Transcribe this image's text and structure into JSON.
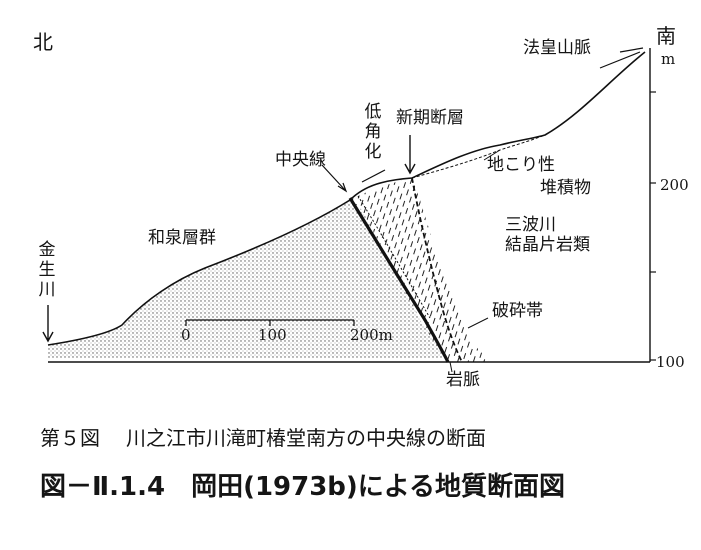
{
  "labels": {
    "north": "北",
    "south": "南",
    "meter_unit": "m",
    "mountain": "法皇山脈",
    "low_angle": "低角化",
    "new_fault": "新期断層",
    "central_line": "中央線",
    "landslide_line1": "地こり性",
    "landslide_line2": "堆積物",
    "sanbagawa_line1": "三波川",
    "sanbagawa_line2": "結晶片岩類",
    "izumi": "和泉層群",
    "river": "金生川",
    "fracture_zone": "破砕帯",
    "dike": "岩脈"
  },
  "scale_bar": {
    "ticks": [
      "0",
      "100",
      "200m"
    ]
  },
  "elevation_axis": {
    "ticks": [
      "200",
      "100"
    ]
  },
  "caption": {
    "figure_no": "第５図",
    "figure_title": "川之江市川滝町椿堂南方の中央線の断面",
    "main_no": "図－Ⅱ.1.4",
    "main_title": "岡田(1973b)による地質断面図"
  }
}
